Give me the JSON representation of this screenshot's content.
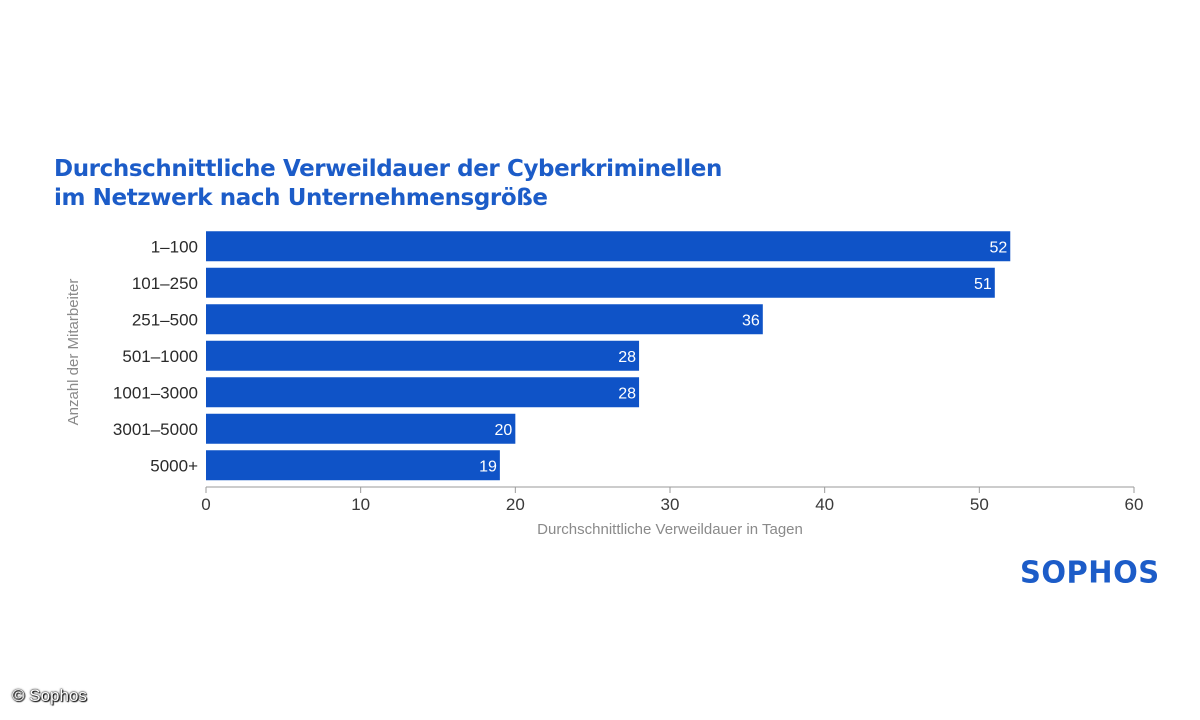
{
  "chart_data": {
    "type": "bar",
    "orientation": "horizontal",
    "title_lines": [
      "Durchschnittliche Verweildauer der Cyberkriminellen",
      "im Netzwerk nach Unternehmensgröße"
    ],
    "categories": [
      "1–100",
      "101–250",
      "251–500",
      "501–1000",
      "1001–3000",
      "3001–5000",
      "5000+"
    ],
    "values": [
      52,
      51,
      36,
      28,
      28,
      20,
      19
    ],
    "xlabel": "Durchschnittliche Verweildauer in Tagen",
    "ylabel": "Anzahl der Mitarbeiter",
    "xlim": [
      0,
      60
    ],
    "xticks": [
      0,
      10,
      20,
      30,
      40,
      50,
      60
    ],
    "bar_color": "#0f53c7",
    "label_color": "#ffffff"
  },
  "brand": {
    "logo_text": "SOPHOS",
    "color": "#1c5cc8"
  },
  "credit": {
    "text": "© Sophos"
  }
}
